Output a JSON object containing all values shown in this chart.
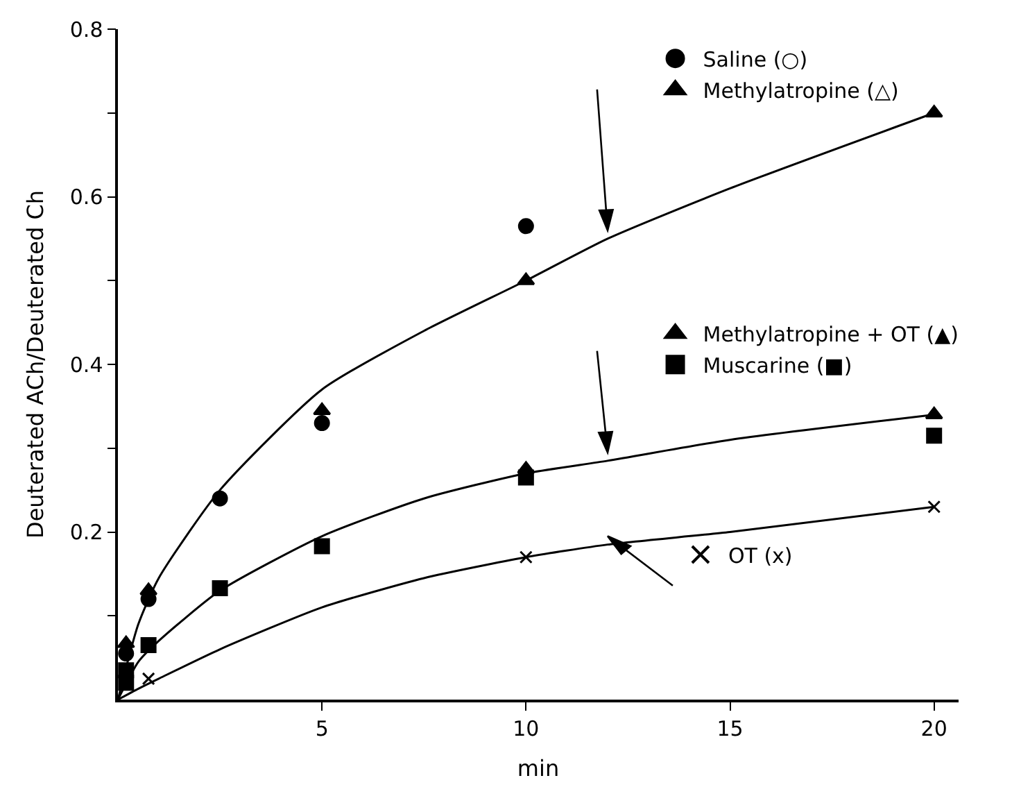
{
  "chart_data": {
    "type": "scatter",
    "xlabel": "min",
    "ylabel": "Deuterated ACh/Deuterated Ch",
    "xlim": [
      0,
      20.6
    ],
    "xticks": [
      5,
      10,
      15,
      20
    ],
    "ylim": [
      0,
      0.8
    ],
    "yticks": [
      {
        "value": 0.1,
        "label": null
      },
      0.2,
      {
        "value": 0.3,
        "label": null
      },
      0.4,
      {
        "value": 0.5,
        "label": null
      },
      0.6,
      {
        "value": 0.7,
        "label": null
      },
      0.8
    ],
    "legend": "right",
    "series": [
      {
        "name": "Saline (○)",
        "marker": "circle",
        "color": "#000000",
        "x": [
          0.2,
          0.75,
          2.5,
          5,
          10
        ],
        "values": [
          0.055,
          0.12,
          0.24,
          0.33,
          0.565
        ]
      },
      {
        "name": "Methylatropine (△)",
        "marker": "triangle",
        "color": "#000000",
        "x": [
          0.2,
          0.75,
          5,
          10,
          20
        ],
        "values": [
          0.067,
          0.13,
          0.345,
          0.5,
          0.7
        ]
      },
      {
        "name": "Methylatropine + OT (▲)",
        "marker": "triangle",
        "color": "#000000",
        "x": [
          10,
          20
        ],
        "values": [
          0.275,
          0.34
        ]
      },
      {
        "name": "Muscarine (■)",
        "marker": "square",
        "color": "#000000",
        "x": [
          0.2,
          0.2,
          0.75,
          2.5,
          5,
          10,
          20
        ],
        "values": [
          0.02,
          0.035,
          0.065,
          0.133,
          0.183,
          0.265,
          0.315
        ]
      },
      {
        "name": "OT (x)",
        "marker": "cross",
        "color": "#000000",
        "x": [
          0.75,
          10,
          20
        ],
        "values": [
          0.025,
          0.17,
          0.23
        ]
      },
      {
        "type": "line",
        "marker": "none",
        "color": "#000000",
        "x": [
          0,
          0.5,
          1,
          2.5,
          5,
          7.5,
          10,
          12,
          15,
          20
        ],
        "values": [
          0,
          0.09,
          0.145,
          0.25,
          0.37,
          0.44,
          0.5,
          0.55,
          0.61,
          0.7
        ]
      },
      {
        "type": "line",
        "marker": "none",
        "color": "#000000",
        "x": [
          0,
          0.5,
          1,
          2.5,
          5,
          7.5,
          10,
          12,
          15,
          20
        ],
        "values": [
          0,
          0.045,
          0.07,
          0.13,
          0.195,
          0.24,
          0.27,
          0.285,
          0.31,
          0.34
        ]
      },
      {
        "type": "line",
        "marker": "none",
        "color": "#000000",
        "x": [
          0,
          0.5,
          1,
          2.5,
          5,
          7.5,
          10,
          12,
          15,
          20
        ],
        "values": [
          0,
          0.013,
          0.025,
          0.06,
          0.11,
          0.145,
          0.17,
          0.185,
          0.2,
          0.23
        ]
      }
    ]
  }
}
